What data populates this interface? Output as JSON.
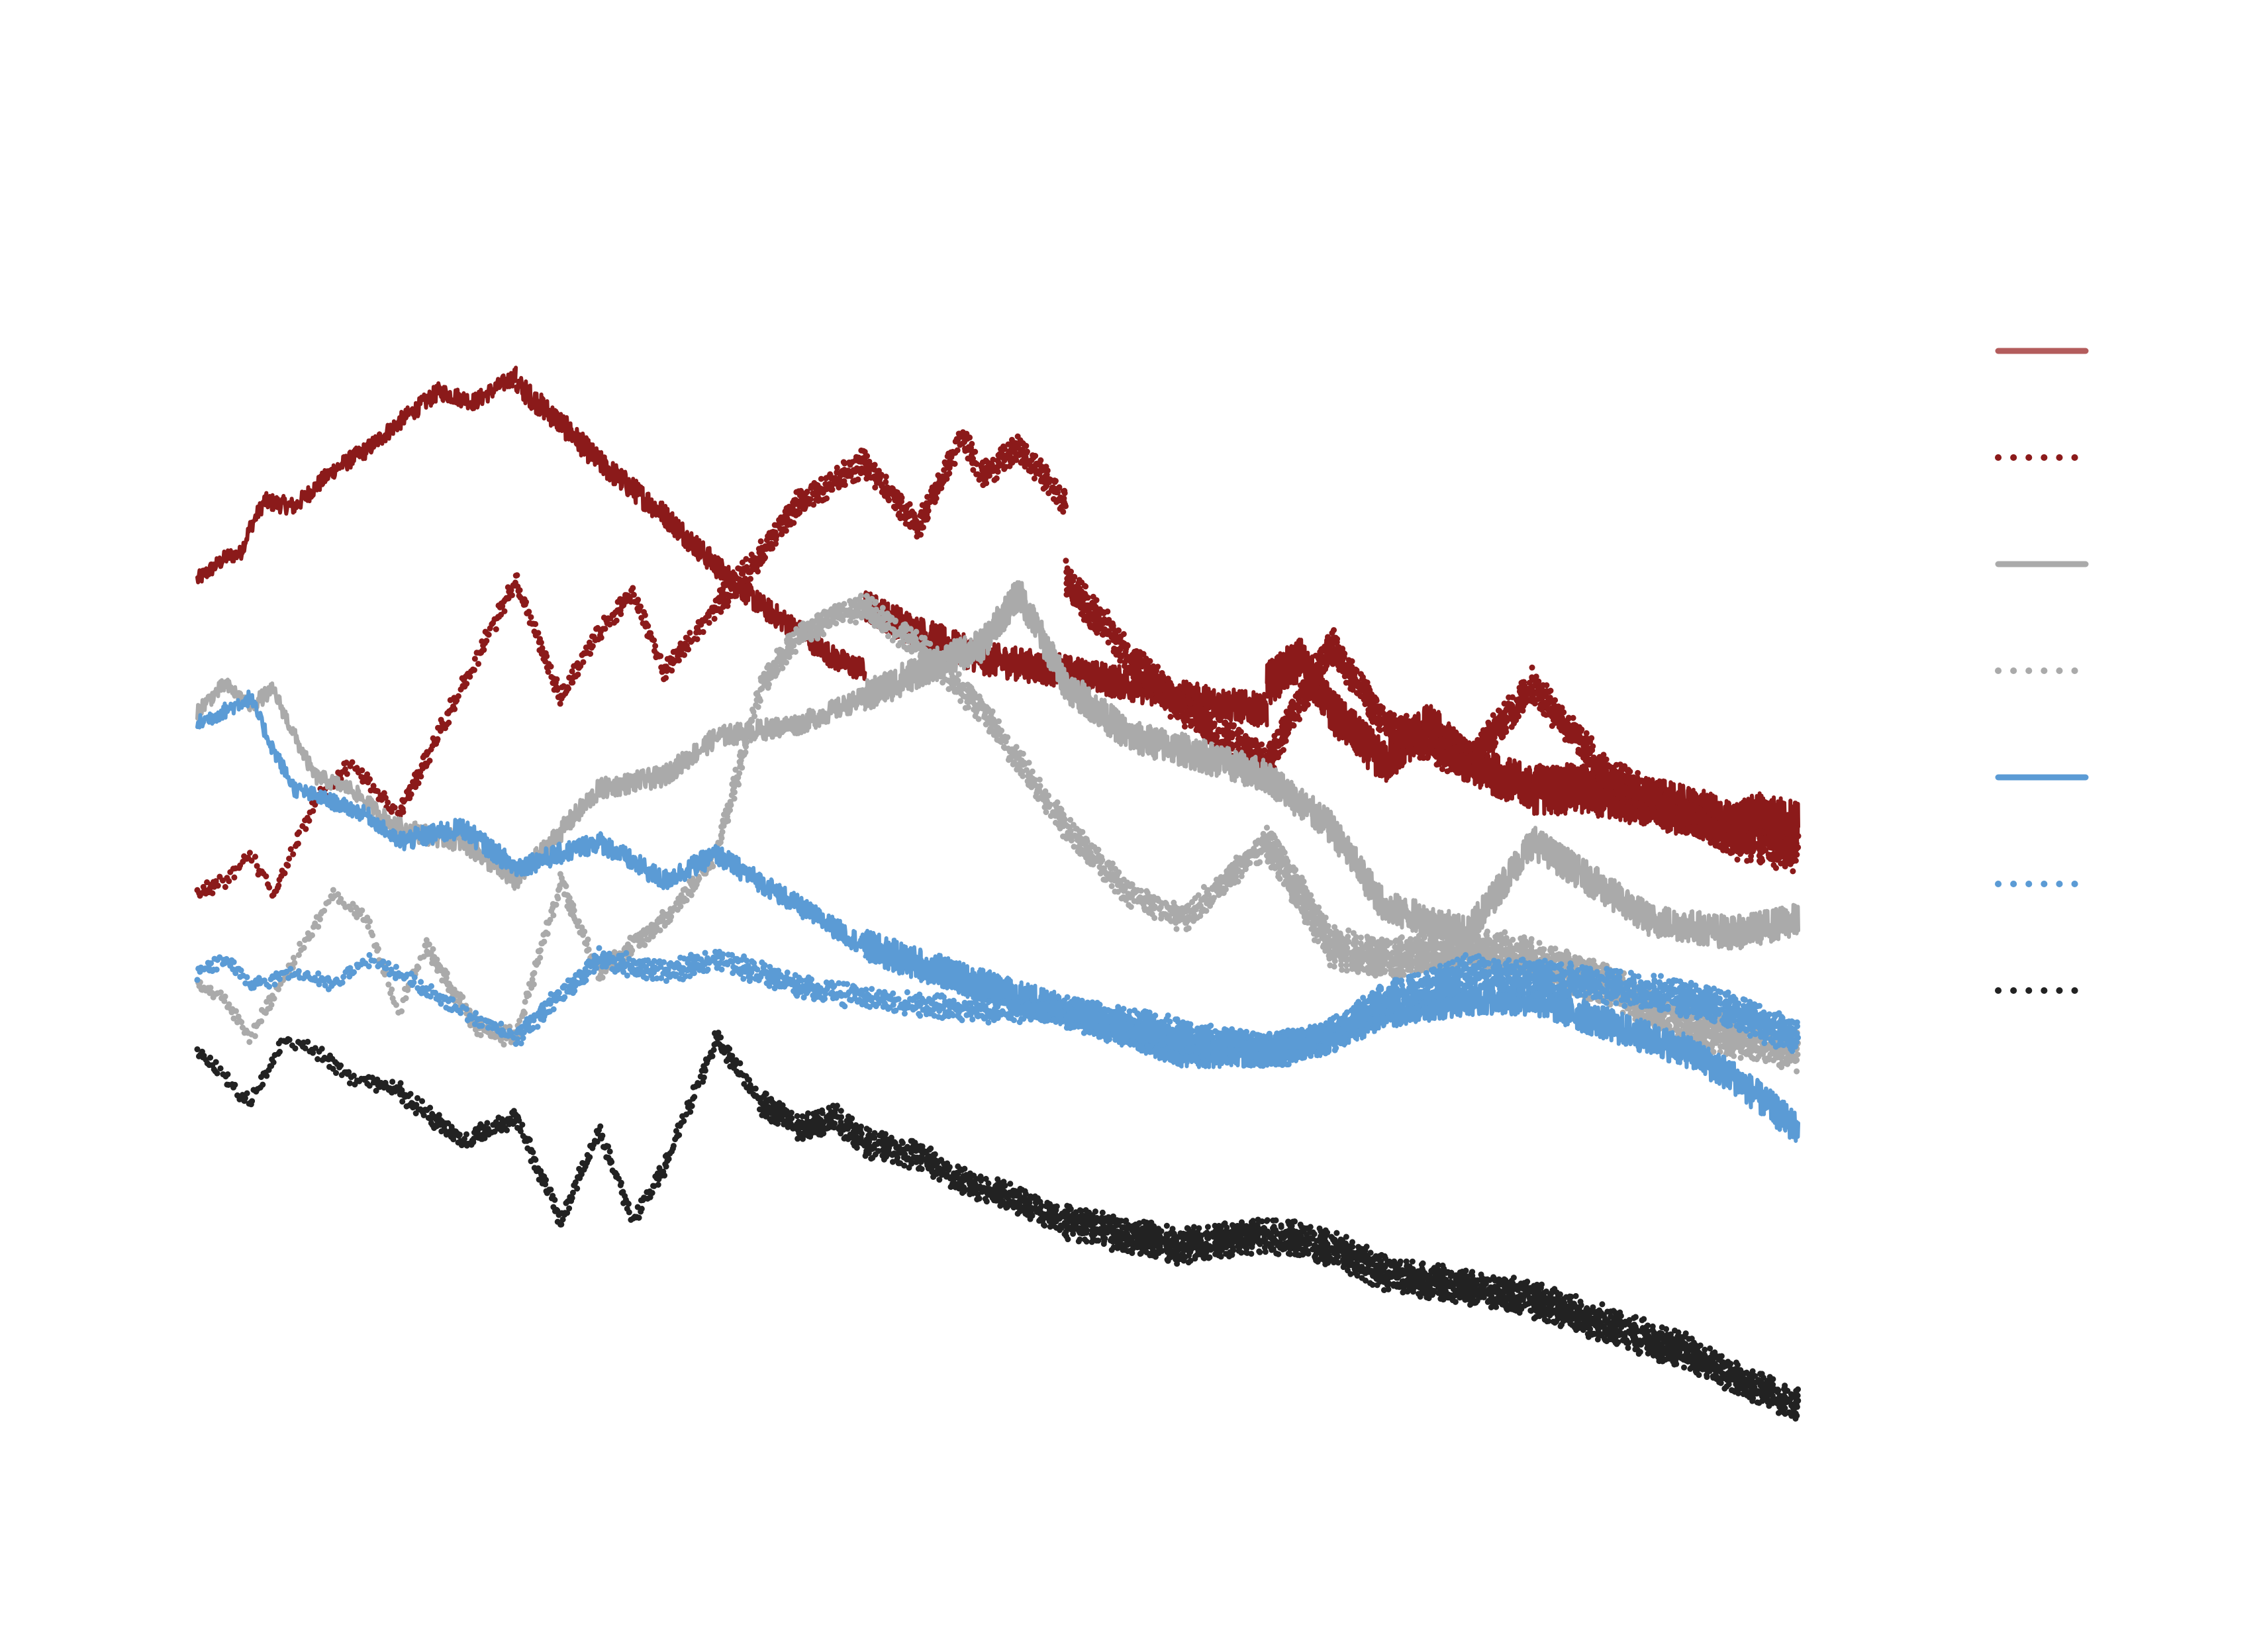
{
  "chart_data": {
    "type": "line",
    "title": "",
    "xlabel": "",
    "ylabel": "",
    "axes_visible": false,
    "grid": false,
    "xscale": "log",
    "yscale": "log",
    "legend": {
      "placement": "right",
      "labels_visible": false
    },
    "series": [
      {
        "color": "#8b1a1a",
        "style": "solid",
        "segments": [
          {
            "x": [
              1.0,
              1.06,
              1.11,
              1.16,
              1.2,
              1.26
            ],
            "y": [
              0.0,
              0.05,
              0.09,
              0.1,
              0.2,
              0.3
            ]
          },
          {
            "x": [
              1.26,
              1.4,
              1.6,
              1.8,
              2.0,
              2.3,
              2.6,
              3.0
            ],
            "y": [
              0.3,
              0.28,
              0.42,
              0.5,
              0.6,
              0.72,
              0.68,
              0.78
            ]
          },
          {
            "x": [
              3.0,
              3.5,
              4.0,
              5.0,
              6.0,
              7.0,
              8.0,
              9.0,
              10.0
            ],
            "y": [
              0.75,
              0.6,
              0.45,
              0.25,
              0.05,
              -0.1,
              -0.2,
              -0.3,
              -0.35
            ]
          },
          {
            "x": [
              10.0,
              12.0,
              15.0,
              20.0,
              25.0,
              30.0,
              40.0
            ],
            "y": [
              -0.1,
              -0.2,
              -0.3,
              -0.35,
              -0.4,
              -0.45,
              -0.5
            ]
          },
          {
            "x": [
              40.0,
              45.0,
              50.0,
              60.0,
              70.0,
              80.0,
              100.0
            ],
            "y": [
              -0.4,
              -0.3,
              -0.5,
              -0.7,
              -0.55,
              -0.7,
              -0.8
            ]
          },
          {
            "x": [
              100.0,
              120.0,
              150.0,
              180.0,
              200.0,
              220.0,
              250.0
            ],
            "y": [
              -0.8,
              -0.8,
              -0.85,
              -0.9,
              -0.95,
              -0.9,
              -0.95
            ]
          }
        ]
      },
      {
        "color": "#8b1a1a",
        "style": "dotted",
        "segments": [
          {
            "x": [
              1.0,
              1.1,
              1.2,
              1.3,
              1.5,
              1.7,
              2.0
            ],
            "y": [
              -1.2,
              -1.15,
              -1.05,
              -1.2,
              -0.85,
              -0.7,
              -0.9
            ]
          },
          {
            "x": [
              2.0,
              2.5,
              3.0,
              3.5,
              4.0,
              4.5,
              5.0,
              6.0
            ],
            "y": [
              -0.9,
              -0.4,
              0.0,
              -0.45,
              -0.2,
              -0.05,
              -0.35,
              -0.1
            ]
          },
          {
            "x": [
              6.0,
              7.0,
              8.0,
              10.0,
              12.0,
              14.0,
              15.0,
              17.0,
              20.0
            ],
            "y": [
              -0.1,
              0.1,
              0.3,
              0.45,
              0.2,
              0.55,
              0.4,
              0.5,
              0.3
            ]
          },
          {
            "x": [
              20.0,
              25.0,
              30.0,
              40.0,
              50.0,
              60.0,
              80.0,
              100.0,
              130.0,
              170.0,
              200.0,
              250.0
            ],
            "y": [
              0.0,
              -0.3,
              -0.5,
              -0.7,
              -0.25,
              -0.55,
              -0.7,
              -0.4,
              -0.75,
              -0.9,
              -1.0,
              -1.05
            ]
          }
        ]
      },
      {
        "color": "#aaaaaa",
        "style": "solid",
        "segments": [
          {
            "x": [
              1.0,
              1.1,
              1.2,
              1.3,
              1.4,
              1.5,
              1.7,
              2.0
            ],
            "y": [
              -0.5,
              -0.4,
              -0.48,
              -0.42,
              -0.6,
              -0.75,
              -0.8,
              -0.95
            ]
          },
          {
            "x": [
              2.0,
              2.5,
              3.0,
              4.0,
              5.0,
              6.0,
              8.0,
              10.0
            ],
            "y": [
              -0.95,
              -1.0,
              -1.15,
              -0.8,
              -0.75,
              -0.6,
              -0.55,
              -0.45
            ]
          },
          {
            "x": [
              10.0,
              12.0,
              15.0,
              17.0,
              20.0,
              25.0,
              30.0,
              40.0,
              50.0,
              60.0,
              80.0,
              100.0,
              150.0,
              200.0,
              250.0
            ],
            "y": [
              -0.45,
              -0.35,
              -0.25,
              -0.05,
              -0.4,
              -0.6,
              -0.65,
              -0.75,
              -0.95,
              -1.25,
              -1.35,
              -1.0,
              -1.3,
              -1.35,
              -1.3
            ]
          }
        ]
      },
      {
        "color": "#aaaaaa",
        "style": "dotted",
        "segments": [
          {
            "x": [
              1.0,
              1.1,
              1.2,
              1.4,
              1.6,
              1.8,
              2.0,
              2.2
            ],
            "y": [
              -1.55,
              -1.6,
              -1.75,
              -1.45,
              -1.2,
              -1.3,
              -1.65,
              -1.4
            ]
          },
          {
            "x": [
              2.2,
              2.6,
              3.0,
              3.5,
              4.0,
              5.0,
              6.0
            ],
            "y": [
              -1.4,
              -1.7,
              -1.75,
              -1.15,
              -1.5,
              -1.3,
              -1.05
            ]
          },
          {
            "x": [
              6.0,
              7.0,
              8.0,
              10.0,
              12.0,
              15.0,
              20.0,
              25.0,
              30.0,
              40.0
            ],
            "y": [
              -1.05,
              -0.4,
              -0.2,
              -0.1,
              -0.25,
              -0.5,
              -0.95,
              -1.2,
              -1.3,
              -1.0
            ]
          },
          {
            "x": [
              40.0,
              50.0,
              60.0,
              80.0,
              100.0,
              130.0,
              170.0,
              200.0,
              250.0
            ],
            "y": [
              -1.0,
              -1.4,
              -1.45,
              -1.4,
              -1.45,
              -1.55,
              -1.7,
              -1.75,
              -1.8
            ]
          }
        ]
      },
      {
        "color": "#5b9bd5",
        "style": "solid",
        "segments": [
          {
            "x": [
              1.0,
              1.1,
              1.2,
              1.3,
              1.4,
              1.6,
              1.8,
              2.0
            ],
            "y": [
              -0.55,
              -0.5,
              -0.45,
              -0.65,
              -0.8,
              -0.85,
              -0.9,
              -1.0
            ]
          },
          {
            "x": [
              2.0,
              2.5,
              3.0,
              4.0,
              5.0,
              6.0,
              8.0,
              10.0
            ],
            "y": [
              -1.0,
              -0.95,
              -1.1,
              -1.0,
              -1.15,
              -1.05,
              -1.25,
              -1.4
            ]
          },
          {
            "x": [
              10.0,
              15.0,
              20.0,
              30.0,
              40.0,
              50.0,
              60.0,
              80.0,
              100.0,
              130.0,
              170.0,
              200.0,
              250.0
            ],
            "y": [
              -1.4,
              -1.55,
              -1.65,
              -1.8,
              -1.8,
              -1.75,
              -1.65,
              -1.6,
              -1.6,
              -1.7,
              -1.8,
              -1.9,
              -2.1
            ]
          }
        ]
      },
      {
        "color": "#5b9bd5",
        "style": "dotted",
        "segments": [
          {
            "x": [
              1.0,
              1.1,
              1.2,
              1.4,
              1.6,
              1.8,
              2.0,
              2.5,
              3.0
            ],
            "y": [
              -1.5,
              -1.45,
              -1.55,
              -1.5,
              -1.55,
              -1.45,
              -1.5,
              -1.65,
              -1.75
            ]
          },
          {
            "x": [
              3.0,
              4.0,
              5.0,
              6.0,
              8.0,
              10.0,
              15.0,
              20.0
            ],
            "y": [
              -1.75,
              -1.45,
              -1.5,
              -1.45,
              -1.55,
              -1.6,
              -1.65,
              -1.65
            ]
          },
          {
            "x": [
              20.0,
              25.0,
              30.0,
              40.0,
              50.0,
              60.0,
              70.0,
              80.0,
              100.0,
              130.0,
              170.0,
              200.0,
              250.0
            ],
            "y": [
              -1.65,
              -1.7,
              -1.75,
              -1.8,
              -1.75,
              -1.6,
              -1.55,
              -1.5,
              -1.52,
              -1.55,
              -1.6,
              -1.65,
              -1.75
            ]
          }
        ]
      },
      {
        "color": "#222222",
        "style": "dotted",
        "segments": [
          {
            "x": [
              1.0,
              1.1,
              1.2,
              1.35,
              1.5,
              1.7,
              2.0
            ],
            "y": [
              -1.8,
              -1.9,
              -2.0,
              -1.75,
              -1.8,
              -1.9,
              -1.95
            ]
          },
          {
            "x": [
              2.0,
              2.5,
              3.0,
              3.5,
              4.0,
              4.5,
              5.0,
              6.0,
              7.0
            ],
            "y": [
              -1.95,
              -2.15,
              -2.05,
              -2.45,
              -2.1,
              -2.45,
              -2.25,
              -1.75,
              -2.0
            ]
          },
          {
            "x": [
              7.0,
              8.0,
              9.0,
              10.0,
              12.0,
              14.0,
              16.0,
              18.0,
              20.0
            ],
            "y": [
              -2.0,
              -2.1,
              -2.05,
              -2.15,
              -2.2,
              -2.3,
              -2.35,
              -2.4,
              -2.45
            ]
          },
          {
            "x": [
              20.0,
              30.0,
              40.0,
              50.0,
              60.0,
              80.0,
              100.0,
              130.0,
              170.0,
              200.0,
              250.0
            ],
            "y": [
              -2.45,
              -2.55,
              -2.5,
              -2.55,
              -2.65,
              -2.7,
              -2.75,
              -2.85,
              -2.95,
              -3.05,
              -3.15
            ]
          }
        ]
      }
    ]
  }
}
